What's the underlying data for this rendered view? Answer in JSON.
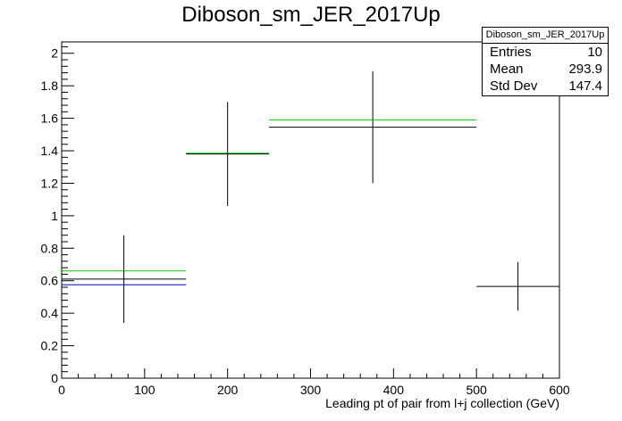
{
  "chart_data": {
    "type": "histogram",
    "title": "Diboson_sm_JER_2017Up",
    "xlabel": "Leading pt of pair from l+j collection (GeV)",
    "ylabel": "",
    "xlim": [
      0,
      600
    ],
    "ylim": [
      0,
      2.07
    ],
    "x_ticks": [
      0,
      100,
      200,
      300,
      400,
      500,
      600
    ],
    "y_ticks": [
      0,
      0.2,
      0.4,
      0.6,
      0.8,
      1,
      1.2,
      1.4,
      1.6,
      1.8,
      2
    ],
    "x_tick_labels": [
      "0",
      "100",
      "200",
      "300",
      "400",
      "500",
      "600"
    ],
    "y_tick_labels": [
      "0",
      "0.2",
      "0.4",
      "0.6",
      "0.8",
      "1",
      "1.2",
      "1.4",
      "1.6",
      "1.8",
      "2"
    ],
    "grid": false,
    "series": [
      {
        "color": "#000000",
        "bins": [
          {
            "x_low": 0,
            "x_high": 150,
            "y": 0.61,
            "y_err": 0.27
          },
          {
            "x_low": 150,
            "x_high": 250,
            "y": 1.38,
            "y_err": 0.32
          },
          {
            "x_low": 250,
            "x_high": 500,
            "y": 1.545,
            "y_err": 0.345
          },
          {
            "x_low": 500,
            "x_high": 600,
            "y": 0.565,
            "y_err": 0.15
          }
        ]
      },
      {
        "color": "#00cc00",
        "bins": [
          {
            "x_low": 0,
            "x_high": 150,
            "y": 0.66
          },
          {
            "x_low": 150,
            "x_high": 250,
            "y": 1.385
          },
          {
            "x_low": 250,
            "x_high": 500,
            "y": 1.59
          }
        ]
      },
      {
        "color": "#0000cc",
        "bins": [
          {
            "x_low": 0,
            "x_high": 150,
            "y": 0.575
          }
        ]
      }
    ],
    "stats": {
      "title": "Diboson_sm_JER_2017Up",
      "rows": [
        {
          "label": "Entries",
          "value": "10"
        },
        {
          "label": "Mean",
          "value": "293.9"
        },
        {
          "label": "Std Dev",
          "value": "147.4"
        }
      ]
    }
  }
}
